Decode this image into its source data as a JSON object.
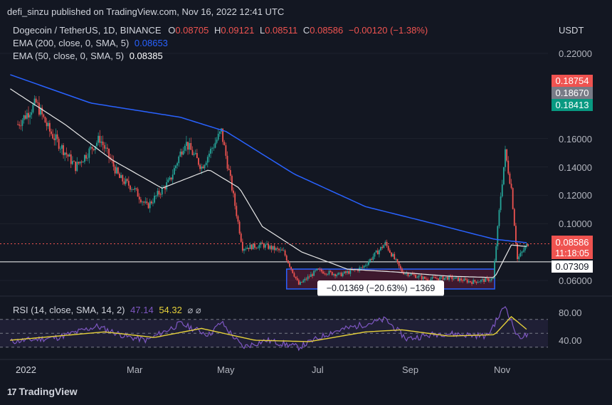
{
  "header": {
    "published": "defi_sinzu published on TradingView.com, Nov 16, 2022 12:41 UTC"
  },
  "legend": {
    "symbol": "Dogecoin / TetherUS, 1D, BINANCE",
    "o_label": "O",
    "o_value": "0.08705",
    "h_label": "H",
    "h_value": "0.09121",
    "l_label": "L",
    "l_value": "0.08511",
    "c_label": "C",
    "c_value": "0.08586",
    "change": "−0.00120 (−1.38%)",
    "ema200_label": "EMA (200, close, 0, SMA, 5)",
    "ema200_value": "0.08653",
    "ema50_label": "EMA (50, close, 0, SMA, 5)",
    "ema50_value": "0.08385"
  },
  "price_scale": {
    "unit": "USDT",
    "ticks": [
      "0.22000",
      "0.16000",
      "0.14000",
      "0.12000",
      "0.10000",
      "0.06000"
    ],
    "badges": {
      "b1": "0.18754",
      "b2": "0.18670",
      "b3": "0.18413",
      "last": "0.08586",
      "countdown": "11:18:05",
      "hline": "0.07309"
    }
  },
  "measure": {
    "label": "−0.01369 (−20.63%) −1369"
  },
  "rsi": {
    "label": "RSI (14, close, SMA, 14, 2)",
    "value1": "47.14",
    "value2": "54.32",
    "icons": "⌀ ⌀",
    "ticks": [
      "80.00",
      "40.00"
    ]
  },
  "time_axis": {
    "labels": [
      "2022",
      "Mar",
      "May",
      "Jul",
      "Sep",
      "Nov"
    ]
  },
  "footer": {
    "brand": "TradingView",
    "brand_mark": "17"
  },
  "colors": {
    "bg": "#131722",
    "up": "#26a69a",
    "down": "#ef5350",
    "ema200": "#2962ff",
    "ema50": "#e8e8e8",
    "rsi": "#7e57c2",
    "rsi_ma": "#e6d13a"
  },
  "chart_data": {
    "type": "candlestick",
    "title": "Dogecoin / TetherUS, 1D, BINANCE",
    "ylabel": "USDT",
    "ylim": [
      0.045,
      0.235
    ],
    "x_labels": [
      "2022",
      "Mar",
      "May",
      "Jul",
      "Sep",
      "Nov"
    ],
    "price_anchors": [
      {
        "date": "2021-12-15",
        "close": 0.17
      },
      {
        "date": "2021-12-27",
        "close": 0.185
      },
      {
        "date": "2022-01-05",
        "close": 0.165
      },
      {
        "date": "2022-01-12",
        "close": 0.155
      },
      {
        "date": "2022-01-22",
        "close": 0.14
      },
      {
        "date": "2022-02-07",
        "close": 0.16
      },
      {
        "date": "2022-02-20",
        "close": 0.132
      },
      {
        "date": "2022-03-01",
        "close": 0.125
      },
      {
        "date": "2022-03-10",
        "close": 0.112
      },
      {
        "date": "2022-03-25",
        "close": 0.13
      },
      {
        "date": "2022-04-04",
        "close": 0.158
      },
      {
        "date": "2022-04-15",
        "close": 0.14
      },
      {
        "date": "2022-04-28",
        "close": 0.165
      },
      {
        "date": "2022-05-05",
        "close": 0.125
      },
      {
        "date": "2022-05-12",
        "close": 0.083
      },
      {
        "date": "2022-05-25",
        "close": 0.085
      },
      {
        "date": "2022-06-08",
        "close": 0.08
      },
      {
        "date": "2022-06-18",
        "close": 0.057
      },
      {
        "date": "2022-06-30",
        "close": 0.067
      },
      {
        "date": "2022-07-15",
        "close": 0.064
      },
      {
        "date": "2022-07-30",
        "close": 0.069
      },
      {
        "date": "2022-08-14",
        "close": 0.086
      },
      {
        "date": "2022-08-25",
        "close": 0.066
      },
      {
        "date": "2022-09-10",
        "close": 0.061
      },
      {
        "date": "2022-09-25",
        "close": 0.062
      },
      {
        "date": "2022-10-10",
        "close": 0.059
      },
      {
        "date": "2022-10-24",
        "close": 0.061
      },
      {
        "date": "2022-10-29",
        "close": 0.12
      },
      {
        "date": "2022-11-01",
        "close": 0.15
      },
      {
        "date": "2022-11-05",
        "close": 0.125
      },
      {
        "date": "2022-11-09",
        "close": 0.075
      },
      {
        "date": "2022-11-16",
        "close": 0.086
      }
    ],
    "ema200": [
      {
        "date": "2021-12-10",
        "value": 0.205
      },
      {
        "date": "2022-02-01",
        "value": 0.185
      },
      {
        "date": "2022-04-01",
        "value": 0.175
      },
      {
        "date": "2022-05-01",
        "value": 0.165
      },
      {
        "date": "2022-06-15",
        "value": 0.135
      },
      {
        "date": "2022-08-01",
        "value": 0.112
      },
      {
        "date": "2022-09-15",
        "value": 0.1
      },
      {
        "date": "2022-10-25",
        "value": 0.089
      },
      {
        "date": "2022-11-16",
        "value": 0.0865
      }
    ],
    "ema50": [
      {
        "date": "2021-12-10",
        "value": 0.195
      },
      {
        "date": "2022-01-15",
        "value": 0.17
      },
      {
        "date": "2022-02-15",
        "value": 0.145
      },
      {
        "date": "2022-03-20",
        "value": 0.125
      },
      {
        "date": "2022-04-20",
        "value": 0.138
      },
      {
        "date": "2022-05-10",
        "value": 0.125
      },
      {
        "date": "2022-05-25",
        "value": 0.098
      },
      {
        "date": "2022-06-20",
        "value": 0.08
      },
      {
        "date": "2022-07-20",
        "value": 0.068
      },
      {
        "date": "2022-08-20",
        "value": 0.066
      },
      {
        "date": "2022-09-25",
        "value": 0.063
      },
      {
        "date": "2022-10-25",
        "value": 0.062
      },
      {
        "date": "2022-11-05",
        "value": 0.085
      },
      {
        "date": "2022-11-16",
        "value": 0.0838
      }
    ],
    "rsi_anchors": [
      {
        "date": "2021-12-10",
        "value": 38
      },
      {
        "date": "2022-01-10",
        "value": 44
      },
      {
        "date": "2022-02-05",
        "value": 60
      },
      {
        "date": "2022-02-25",
        "value": 45
      },
      {
        "date": "2022-03-10",
        "value": 40
      },
      {
        "date": "2022-04-01",
        "value": 64
      },
      {
        "date": "2022-04-20",
        "value": 48
      },
      {
        "date": "2022-04-28",
        "value": 66
      },
      {
        "date": "2022-05-12",
        "value": 30
      },
      {
        "date": "2022-05-28",
        "value": 40
      },
      {
        "date": "2022-06-18",
        "value": 30
      },
      {
        "date": "2022-07-10",
        "value": 52
      },
      {
        "date": "2022-08-14",
        "value": 70
      },
      {
        "date": "2022-08-28",
        "value": 42
      },
      {
        "date": "2022-09-20",
        "value": 50
      },
      {
        "date": "2022-10-20",
        "value": 46
      },
      {
        "date": "2022-11-01",
        "value": 90
      },
      {
        "date": "2022-11-09",
        "value": 45
      },
      {
        "date": "2022-11-16",
        "value": 47
      }
    ],
    "rsi_ma_anchors": [
      {
        "date": "2021-12-10",
        "value": 40
      },
      {
        "date": "2022-02-10",
        "value": 52
      },
      {
        "date": "2022-03-15",
        "value": 44
      },
      {
        "date": "2022-04-15",
        "value": 57
      },
      {
        "date": "2022-05-20",
        "value": 40
      },
      {
        "date": "2022-06-25",
        "value": 38
      },
      {
        "date": "2022-08-01",
        "value": 52
      },
      {
        "date": "2022-08-25",
        "value": 55
      },
      {
        "date": "2022-09-25",
        "value": 46
      },
      {
        "date": "2022-10-25",
        "value": 48
      },
      {
        "date": "2022-11-05",
        "value": 74
      },
      {
        "date": "2022-11-16",
        "value": 54
      }
    ],
    "rsi_ylim": [
      20,
      100
    ],
    "rsi_levels": [
      70,
      50,
      30
    ],
    "measure_box": {
      "from": "2022-06-10",
      "to": "2022-10-25",
      "top": 0.068,
      "bottom": 0.054
    },
    "hline": 0.07309
  }
}
